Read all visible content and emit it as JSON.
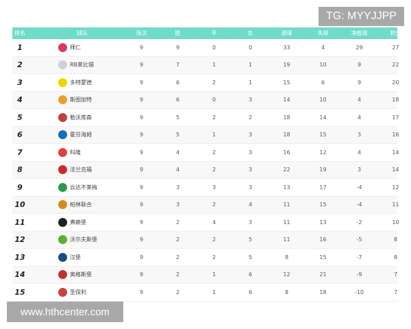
{
  "watermark_top": "TG: MYYJJPP",
  "watermark_bottom": "www.hthcenter.com",
  "header_color": "#6fdcc8",
  "columns": [
    "排名",
    "球队",
    "场次",
    "胜",
    "平",
    "负",
    "进球",
    "失球",
    "净胜球",
    "积分"
  ],
  "rows": [
    {
      "rank": "1",
      "team": "拜仁",
      "logo_color": "#dc3a5c",
      "p": "9",
      "w": "9",
      "d": "0",
      "l": "0",
      "gf": "33",
      "ga": "4",
      "gd": "29",
      "pts": "27"
    },
    {
      "rank": "2",
      "team": "RB莱比锡",
      "logo_color": "#d0d0d8",
      "p": "9",
      "w": "7",
      "d": "1",
      "l": "1",
      "gf": "19",
      "ga": "10",
      "gd": "9",
      "pts": "22"
    },
    {
      "rank": "3",
      "team": "多特蒙德",
      "logo_color": "#f2d400",
      "p": "9",
      "w": "6",
      "d": "2",
      "l": "1",
      "gf": "15",
      "ga": "6",
      "gd": "9",
      "pts": "20"
    },
    {
      "rank": "4",
      "team": "斯图加特",
      "logo_color": "#e8a030",
      "p": "9",
      "w": "6",
      "d": "0",
      "l": "3",
      "gf": "14",
      "ga": "10",
      "gd": "4",
      "pts": "18"
    },
    {
      "rank": "5",
      "team": "勒沃库森",
      "logo_color": "#c0403a",
      "p": "9",
      "w": "5",
      "d": "2",
      "l": "2",
      "gf": "18",
      "ga": "14",
      "gd": "4",
      "pts": "17"
    },
    {
      "rank": "6",
      "team": "霍芬海姆",
      "logo_color": "#1a6cc0",
      "p": "9",
      "w": "5",
      "d": "1",
      "l": "3",
      "gf": "18",
      "ga": "15",
      "gd": "3",
      "pts": "16"
    },
    {
      "rank": "7",
      "team": "科隆",
      "logo_color": "#e04040",
      "p": "9",
      "w": "4",
      "d": "2",
      "l": "3",
      "gf": "16",
      "ga": "12",
      "gd": "4",
      "pts": "14"
    },
    {
      "rank": "8",
      "team": "法兰克福",
      "logo_color": "#d02828",
      "p": "9",
      "w": "4",
      "d": "2",
      "l": "3",
      "gf": "22",
      "ga": "19",
      "gd": "3",
      "pts": "14"
    },
    {
      "rank": "9",
      "team": "云达不莱梅",
      "logo_color": "#2a9a50",
      "p": "9",
      "w": "3",
      "d": "3",
      "l": "3",
      "gf": "13",
      "ga": "17",
      "gd": "-4",
      "pts": "12"
    },
    {
      "rank": "10",
      "team": "柏林联合",
      "logo_color": "#d88a20",
      "p": "9",
      "w": "3",
      "d": "2",
      "l": "4",
      "gf": "11",
      "ga": "15",
      "gd": "-4",
      "pts": "11"
    },
    {
      "rank": "11",
      "team": "弗赖堡",
      "logo_color": "#222222",
      "p": "9",
      "w": "2",
      "d": "4",
      "l": "3",
      "gf": "11",
      "ga": "13",
      "gd": "-2",
      "pts": "10"
    },
    {
      "rank": "12",
      "team": "沃尔夫斯堡",
      "logo_color": "#5ab030",
      "p": "9",
      "w": "2",
      "d": "2",
      "l": "5",
      "gf": "11",
      "ga": "16",
      "gd": "-5",
      "pts": "8"
    },
    {
      "rank": "13",
      "team": "汉堡",
      "logo_color": "#1a4a80",
      "p": "9",
      "w": "2",
      "d": "2",
      "l": "5",
      "gf": "8",
      "ga": "15",
      "gd": "-7",
      "pts": "8"
    },
    {
      "rank": "14",
      "team": "奥格斯堡",
      "logo_color": "#c83030",
      "p": "9",
      "w": "2",
      "d": "1",
      "l": "6",
      "gf": "12",
      "ga": "21",
      "gd": "-9",
      "pts": "7"
    },
    {
      "rank": "15",
      "team": "圣保利",
      "logo_color": "#c84040",
      "p": "9",
      "w": "2",
      "d": "1",
      "l": "6",
      "gf": "8",
      "ga": "18",
      "gd": "-10",
      "pts": "7"
    }
  ]
}
